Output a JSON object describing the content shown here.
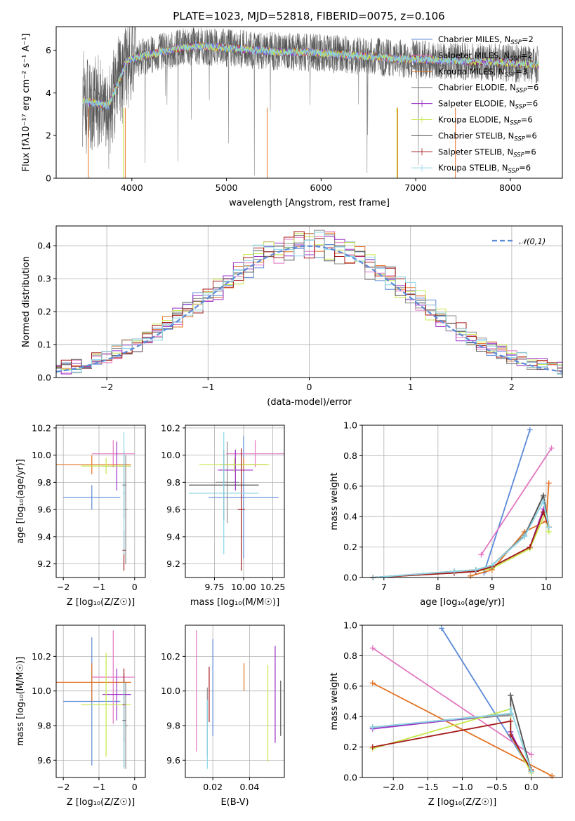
{
  "chart_data": [
    {
      "type": "line",
      "title": "PLATE=1023, MJD=52818, FIBERID=0075, z=0.106",
      "xlabel": "wavelength [Angstrom, rest frame]",
      "ylabel": "Flux [f_λ 10^-17 erg cm^-2 s^-1 A^-1]",
      "xlim": [
        3200,
        8550
      ],
      "ylim": [
        0,
        7.1
      ],
      "xticks": [
        4000,
        5000,
        6000,
        7000,
        8000
      ],
      "yticks": [
        0,
        2,
        4,
        6
      ],
      "legend_position": "upper-right",
      "series": [
        {
          "name": "Chabrier MILES, N_SSP=2",
          "color": "#5b8ad9"
        },
        {
          "name": "Salpeter MILES, N_SSP=2",
          "color": "#e377c2"
        },
        {
          "name": "Kroupa MILES, N_SSP=3",
          "color": "#e37222"
        },
        {
          "name": "Chabrier ELODIE, N_SSP=6",
          "color": "#8c8c8c"
        },
        {
          "name": "Salpeter ELODIE, N_SSP=6",
          "color": "#9b30c8"
        },
        {
          "name": "Kroupa ELODIE, N_SSP=6",
          "color": "#c5e84a"
        },
        {
          "name": "Chabrier STELIB, N_SSP=6",
          "color": "#555555"
        },
        {
          "name": "Salpeter STELIB, N_SSP=6",
          "color": "#a61b1b"
        },
        {
          "name": "Kroupa STELIB, N_SSP=6",
          "color": "#8cd6e6"
        }
      ],
      "continuum": {
        "x": [
          3500,
          3650,
          3750,
          3850,
          3950,
          4100,
          4300,
          4500,
          4700,
          5000,
          5300,
          5600,
          5900,
          6200,
          6500,
          6800,
          7100,
          7400,
          7700,
          8000,
          8300
        ],
        "y": [
          3.6,
          3.5,
          3.4,
          4.4,
          5.5,
          5.7,
          5.9,
          6.1,
          6.2,
          6.1,
          6.0,
          5.9,
          5.9,
          5.8,
          5.7,
          5.6,
          5.55,
          5.5,
          5.45,
          5.4,
          5.3
        ]
      }
    },
    {
      "type": "step",
      "xlabel": "(data-model)/error",
      "ylabel": "Normed distribution",
      "xlim": [
        -2.5,
        2.5
      ],
      "ylim": [
        0,
        0.46
      ],
      "xticks": [
        -2,
        -1,
        0,
        1,
        2
      ],
      "yticks": [
        0.0,
        0.1,
        0.2,
        0.3,
        0.4
      ],
      "gaussian_label": "𝒩(0,1)",
      "gaussian_color": "#5b8ad9",
      "bin_width": 0.1
    },
    {
      "type": "errorbar",
      "xlabel": "Z [log10(Z/Z⊙)]",
      "ylabel": "age [log10(age/yr)]",
      "xlim": [
        -2.2,
        0.3
      ],
      "ylim": [
        9.1,
        10.22
      ],
      "xticks": [
        -2,
        -1,
        0
      ],
      "yticks": [
        9.2,
        9.4,
        9.6,
        9.8,
        10.0,
        10.2
      ],
      "points": [
        {
          "color": "#5b8ad9",
          "x": -1.2,
          "xerr": 0.8,
          "y": 9.69,
          "yerr": 0.09
        },
        {
          "color": "#e377c2",
          "x": -0.6,
          "xerr": 0.6,
          "y": 10.01,
          "yerr": 0.1
        },
        {
          "color": "#e37222",
          "x": -1.2,
          "xerr": 1.1,
          "y": 9.93,
          "yerr": 0.07
        },
        {
          "color": "#8c8c8c",
          "x": -0.25,
          "xerr": 0.06,
          "y": 9.6,
          "yerr": 0.4
        },
        {
          "color": "#9b30c8",
          "x": -0.5,
          "xerr": 0.4,
          "y": 9.92,
          "yerr": 0.18
        },
        {
          "color": "#c5e84a",
          "x": -0.8,
          "xerr": 0.7,
          "y": 9.92,
          "yerr": 0.06
        },
        {
          "color": "#555555",
          "x": -0.3,
          "xerr": 0.04,
          "y": 9.78,
          "yerr": 0.25
        },
        {
          "color": "#a61b1b",
          "x": -0.3,
          "xerr": 0.04,
          "y": 9.3,
          "yerr": 0.15
        },
        {
          "color": "#8cd6e6",
          "x": -0.3,
          "xerr": 0.03,
          "y": 9.72,
          "yerr": 0.45
        }
      ]
    },
    {
      "type": "errorbar",
      "xlabel": "mass [log10(M/M⊙)]",
      "ylabel": "",
      "xlim": [
        9.5,
        10.35
      ],
      "ylim": [
        9.1,
        10.22
      ],
      "xticks": [
        9.75,
        10.0,
        10.25
      ],
      "yticks": [
        9.2,
        9.4,
        9.6,
        9.8,
        10.0,
        10.2
      ],
      "points": [
        {
          "color": "#5b8ad9",
          "x": 10.0,
          "xerr": 0.3,
          "y": 9.69,
          "yerr": 0.45
        },
        {
          "color": "#e377c2",
          "x": 10.1,
          "xerr": 0.25,
          "y": 10.01,
          "yerr": 0.1
        },
        {
          "color": "#e37222",
          "x": 10.0,
          "xerr": 0.2,
          "y": 9.93,
          "yerr": 0.05
        },
        {
          "color": "#8c8c8c",
          "x": 9.86,
          "xerr": 0.1,
          "y": 9.8,
          "yerr": 0.3
        },
        {
          "color": "#9b30c8",
          "x": 9.93,
          "xerr": 0.15,
          "y": 9.89,
          "yerr": 0.15
        },
        {
          "color": "#c5e84a",
          "x": 9.92,
          "xerr": 0.3,
          "y": 9.93,
          "yerr": 0.05
        },
        {
          "color": "#555555",
          "x": 9.83,
          "xerr": 0.3,
          "y": 9.78,
          "yerr": 0.26
        },
        {
          "color": "#a61b1b",
          "x": 9.98,
          "xerr": 0.03,
          "y": 9.6,
          "yerr": 0.45
        },
        {
          "color": "#8cd6e6",
          "x": 9.83,
          "xerr": 0.3,
          "y": 9.72,
          "yerr": 0.45
        }
      ]
    },
    {
      "type": "line",
      "xlabel": "age [log10(age/yr)]",
      "ylabel": "mass weight",
      "xlim": [
        6.6,
        10.3
      ],
      "ylim": [
        0,
        1.0
      ],
      "xticks": [
        7,
        8,
        9,
        10
      ],
      "yticks": [
        0.0,
        0.2,
        0.4,
        0.6,
        0.8,
        1.0
      ],
      "series": [
        {
          "color": "#5b8ad9",
          "x": [
            8.85,
            9.7
          ],
          "y": [
            0.03,
            0.97
          ]
        },
        {
          "color": "#e377c2",
          "x": [
            8.8,
            10.1
          ],
          "y": [
            0.15,
            0.85
          ]
        },
        {
          "color": "#e37222",
          "x": [
            8.6,
            9.0,
            9.6,
            10.0,
            10.05
          ],
          "y": [
            0.01,
            0.05,
            0.3,
            0.37,
            0.62
          ]
        },
        {
          "color": "#8c8c8c",
          "x": [
            6.8,
            8.3,
            8.7,
            9.0,
            9.6,
            9.95,
            10.05
          ],
          "y": [
            0.0,
            0.04,
            0.05,
            0.08,
            0.28,
            0.53,
            0.33
          ]
        },
        {
          "color": "#9b30c8",
          "x": [
            6.8,
            8.3,
            8.7,
            9.0,
            9.7,
            9.95,
            10.05
          ],
          "y": [
            0.0,
            0.03,
            0.04,
            0.07,
            0.2,
            0.45,
            0.33
          ]
        },
        {
          "color": "#c5e84a",
          "x": [
            6.8,
            8.3,
            8.7,
            9.0,
            9.7,
            9.98,
            10.05
          ],
          "y": [
            0.0,
            0.03,
            0.04,
            0.06,
            0.19,
            0.42,
            0.3
          ]
        },
        {
          "color": "#555555",
          "x": [
            6.8,
            8.3,
            8.7,
            9.0,
            9.6,
            9.95,
            10.05
          ],
          "y": [
            0.0,
            0.04,
            0.05,
            0.08,
            0.27,
            0.54,
            0.33
          ]
        },
        {
          "color": "#a61b1b",
          "x": [
            6.8,
            8.3,
            8.7,
            9.0,
            9.7,
            9.95,
            10.05
          ],
          "y": [
            0.0,
            0.03,
            0.04,
            0.07,
            0.2,
            0.43,
            0.33
          ]
        },
        {
          "color": "#8cd6e6",
          "x": [
            6.8,
            8.3,
            8.7,
            9.0,
            9.6,
            9.95,
            10.05
          ],
          "y": [
            0.0,
            0.04,
            0.05,
            0.08,
            0.27,
            0.5,
            0.33
          ]
        }
      ]
    },
    {
      "type": "errorbar",
      "xlabel": "Z [log10(Z/Z⊙)]",
      "ylabel": "mass [log10(M/M⊙)]",
      "xlim": [
        -2.2,
        0.3
      ],
      "ylim": [
        9.5,
        10.38
      ],
      "xticks": [
        -2,
        -1,
        0
      ],
      "yticks": [
        9.6,
        9.8,
        10.0,
        10.2
      ],
      "points": [
        {
          "color": "#5b8ad9",
          "x": -1.2,
          "xerr": 0.8,
          "y": 9.94,
          "yerr": 0.37
        },
        {
          "color": "#e377c2",
          "x": -0.6,
          "xerr": 0.6,
          "y": 10.08,
          "yerr": 0.27
        },
        {
          "color": "#e37222",
          "x": -1.2,
          "xerr": 1.1,
          "y": 10.05,
          "yerr": 0.11
        },
        {
          "color": "#8c8c8c",
          "x": -0.25,
          "xerr": 0.06,
          "y": 9.8,
          "yerr": 0.25
        },
        {
          "color": "#9b30c8",
          "x": -0.5,
          "xerr": 0.4,
          "y": 9.98,
          "yerr": 0.15
        },
        {
          "color": "#c5e84a",
          "x": -0.8,
          "xerr": 0.7,
          "y": 9.92,
          "yerr": 0.3
        },
        {
          "color": "#555555",
          "x": -0.3,
          "xerr": 0.04,
          "y": 9.83,
          "yerr": 0.27
        },
        {
          "color": "#a61b1b",
          "x": -0.3,
          "xerr": 0.04,
          "y": 9.92,
          "yerr": 0.21
        },
        {
          "color": "#8cd6e6",
          "x": -0.3,
          "xerr": 0.03,
          "y": 9.8,
          "yerr": 0.25
        }
      ]
    },
    {
      "type": "errorbar",
      "xlabel": "E(B-V)",
      "ylabel": "",
      "xlim": [
        0.005,
        0.059
      ],
      "ylim": [
        9.5,
        10.38
      ],
      "xticks": [
        0.02,
        0.04
      ],
      "yticks": [
        9.6,
        9.8,
        10.0,
        10.2
      ],
      "points": [
        {
          "color": "#5b8ad9",
          "y": 10.02,
          "yerr": 0.28,
          "x": 0.02
        },
        {
          "color": "#e377c2",
          "y": 10.0,
          "yerr": 0.35,
          "x": 0.011
        },
        {
          "color": "#e37222",
          "y": 10.08,
          "yerr": 0.08,
          "x": 0.037
        },
        {
          "color": "#8c8c8c",
          "y": 9.82,
          "yerr": 0.2,
          "x": 0.017
        },
        {
          "color": "#9b30c8",
          "y": 9.98,
          "yerr": 0.28,
          "x": 0.054
        },
        {
          "color": "#c5e84a",
          "y": 9.87,
          "yerr": 0.28,
          "x": 0.05
        },
        {
          "color": "#555555",
          "y": 9.9,
          "yerr": 0.16,
          "x": 0.057
        },
        {
          "color": "#a61b1b",
          "y": 9.98,
          "yerr": 0.16,
          "x": 0.018
        },
        {
          "color": "#8cd6e6",
          "y": 9.75,
          "yerr": 0.2,
          "x": 0.017
        }
      ]
    },
    {
      "type": "line",
      "xlabel": "Z [log10(Z/Z⊙)]",
      "ylabel": "mass weight",
      "xlim": [
        -2.45,
        0.45
      ],
      "ylim": [
        0,
        1.0
      ],
      "xticks": [
        -2.0,
        -1.5,
        -1.0,
        -0.5,
        0.0
      ],
      "yticks": [
        0.0,
        0.2,
        0.4,
        0.6,
        0.8,
        1.0
      ],
      "series": [
        {
          "color": "#5b8ad9",
          "x": [
            -1.3,
            0.0
          ],
          "y": [
            0.98,
            0.04
          ]
        },
        {
          "color": "#e377c2",
          "x": [
            -2.3,
            0.0
          ],
          "y": [
            0.85,
            0.15
          ]
        },
        {
          "color": "#e37222",
          "x": [
            -2.3,
            0.3
          ],
          "y": [
            0.62,
            0.01
          ]
        },
        {
          "color": "#8c8c8c",
          "x": [
            -2.3,
            -0.3,
            -0.3,
            0.0
          ],
          "y": [
            0.33,
            0.41,
            0.54,
            0.04
          ]
        },
        {
          "color": "#9b30c8",
          "x": [
            -2.3,
            -0.3,
            -0.3,
            0.0
          ],
          "y": [
            0.32,
            0.42,
            0.3,
            0.03
          ]
        },
        {
          "color": "#c5e84a",
          "x": [
            -2.3,
            -0.3,
            -0.3,
            0.0
          ],
          "y": [
            0.19,
            0.45,
            0.28,
            0.03
          ]
        },
        {
          "color": "#555555",
          "x": [
            -2.3,
            -0.3,
            -0.3,
            0.0
          ],
          "y": [
            0.33,
            0.42,
            0.54,
            0.04
          ]
        },
        {
          "color": "#a61b1b",
          "x": [
            -2.3,
            -0.3,
            -0.3,
            0.0
          ],
          "y": [
            0.2,
            0.37,
            0.28,
            0.05
          ]
        },
        {
          "color": "#8cd6e6",
          "x": [
            -2.3,
            -0.3,
            -0.3,
            0.0
          ],
          "y": [
            0.33,
            0.42,
            0.45,
            0.04
          ]
        }
      ]
    }
  ]
}
